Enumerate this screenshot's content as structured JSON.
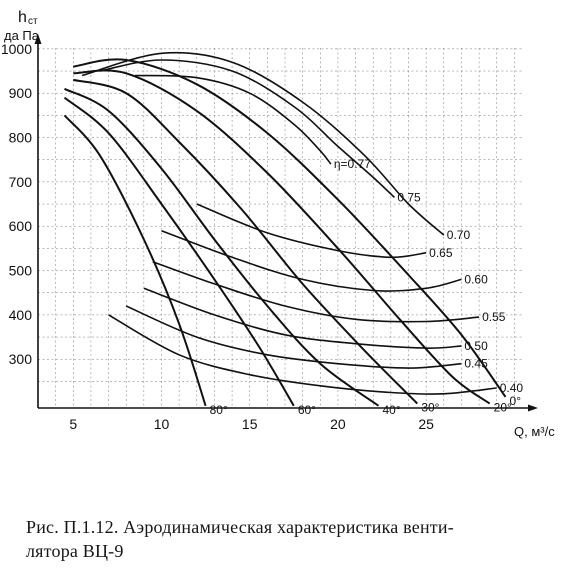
{
  "chart_data": {
    "type": "line",
    "ylabel_line1": "h",
    "ylabel_sub": "ст",
    "ylabel_line2": "да Па",
    "xlabel": "Q, м³/с",
    "xlim": [
      3,
      31
    ],
    "ylim": [
      190,
      1020
    ],
    "x_ticks": [
      5,
      10,
      15,
      20,
      25
    ],
    "y_ticks": [
      300,
      400,
      500,
      600,
      700,
      800,
      900,
      1000
    ],
    "grid": true,
    "pressure_curves": [
      {
        "label": "0°",
        "points": [
          [
            5,
            960
          ],
          [
            8,
            975
          ],
          [
            12,
            920
          ],
          [
            16,
            810
          ],
          [
            20,
            660
          ],
          [
            24,
            490
          ],
          [
            27,
            355
          ],
          [
            29.5,
            215
          ]
        ]
      },
      {
        "label": "20°",
        "points": [
          [
            5,
            945
          ],
          [
            8,
            945
          ],
          [
            12,
            860
          ],
          [
            16,
            720
          ],
          [
            20,
            550
          ],
          [
            23.5,
            390
          ],
          [
            26.5,
            260
          ],
          [
            28.6,
            200
          ]
        ]
      },
      {
        "label": "30°",
        "points": [
          [
            5,
            930
          ],
          [
            8,
            900
          ],
          [
            11,
            790
          ],
          [
            14.5,
            640
          ],
          [
            18,
            470
          ],
          [
            21.5,
            320
          ],
          [
            24.5,
            200
          ]
        ]
      },
      {
        "label": "40°",
        "points": [
          [
            4.5,
            910
          ],
          [
            7,
            860
          ],
          [
            10,
            730
          ],
          [
            13,
            570
          ],
          [
            16,
            420
          ],
          [
            19,
            290
          ],
          [
            22.3,
            195
          ]
        ]
      },
      {
        "label": "60°",
        "points": [
          [
            4.5,
            890
          ],
          [
            7,
            810
          ],
          [
            10,
            650
          ],
          [
            13,
            480
          ],
          [
            15.5,
            330
          ],
          [
            17.5,
            195
          ]
        ]
      },
      {
        "label": "80°",
        "points": [
          [
            4.5,
            850
          ],
          [
            6.5,
            760
          ],
          [
            9,
            570
          ],
          [
            11,
            380
          ],
          [
            12.5,
            195
          ]
        ]
      }
    ],
    "efficiency_curves": [
      {
        "label": "η=0.77",
        "points": [
          [
            8.5,
            940
          ],
          [
            12,
            935
          ],
          [
            15,
            900
          ],
          [
            17.5,
            830
          ],
          [
            19,
            770
          ],
          [
            19.6,
            740
          ]
        ]
      },
      {
        "label": "0.75",
        "points": [
          [
            6.5,
            950
          ],
          [
            10,
            975
          ],
          [
            14,
            950
          ],
          [
            17.5,
            870
          ],
          [
            20,
            780
          ],
          [
            22,
            710
          ],
          [
            23.2,
            665
          ]
        ]
      },
      {
        "label": "0.70",
        "points": [
          [
            5.5,
            940
          ],
          [
            10,
            990
          ],
          [
            14,
            970
          ],
          [
            18,
            880
          ],
          [
            21.5,
            760
          ],
          [
            24,
            650
          ],
          [
            26,
            580
          ]
        ]
      },
      {
        "label": "0.65",
        "points": [
          [
            12,
            650
          ],
          [
            16,
            585
          ],
          [
            20,
            545
          ],
          [
            23,
            530
          ],
          [
            25,
            540
          ]
        ]
      },
      {
        "label": "0.60",
        "points": [
          [
            10,
            590
          ],
          [
            14,
            530
          ],
          [
            18,
            480
          ],
          [
            22,
            455
          ],
          [
            25,
            460
          ],
          [
            27,
            480
          ]
        ]
      },
      {
        "label": "0.55",
        "points": [
          [
            9.5,
            520
          ],
          [
            13,
            470
          ],
          [
            17,
            420
          ],
          [
            21,
            390
          ],
          [
            25,
            385
          ],
          [
            28,
            395
          ]
        ]
      },
      {
        "label": "0.50",
        "points": [
          [
            9,
            460
          ],
          [
            13,
            400
          ],
          [
            17,
            355
          ],
          [
            21,
            335
          ],
          [
            25,
            325
          ],
          [
            27,
            330
          ]
        ]
      },
      {
        "label": "0.45",
        "points": [
          [
            8,
            420
          ],
          [
            12,
            350
          ],
          [
            16,
            310
          ],
          [
            20,
            290
          ],
          [
            24,
            280
          ],
          [
            27,
            290
          ]
        ]
      },
      {
        "label": "0.40",
        "points": [
          [
            7,
            400
          ],
          [
            11,
            310
          ],
          [
            15,
            265
          ],
          [
            19,
            240
          ],
          [
            23,
            225
          ],
          [
            26,
            222
          ],
          [
            29,
            235
          ]
        ]
      }
    ],
    "annotations": [
      "η=0.77",
      "0.75",
      "0.70",
      "0.65",
      "0.60",
      "0.55",
      "0.50",
      "0.45",
      "0.40",
      "80°",
      "60°",
      "40°",
      "30°",
      "20°",
      "0°"
    ]
  },
  "caption": {
    "line1": "Рис. П.1.12. Аэродинамическая характеристика венти-",
    "line2": "лятора ВЦ-9"
  }
}
